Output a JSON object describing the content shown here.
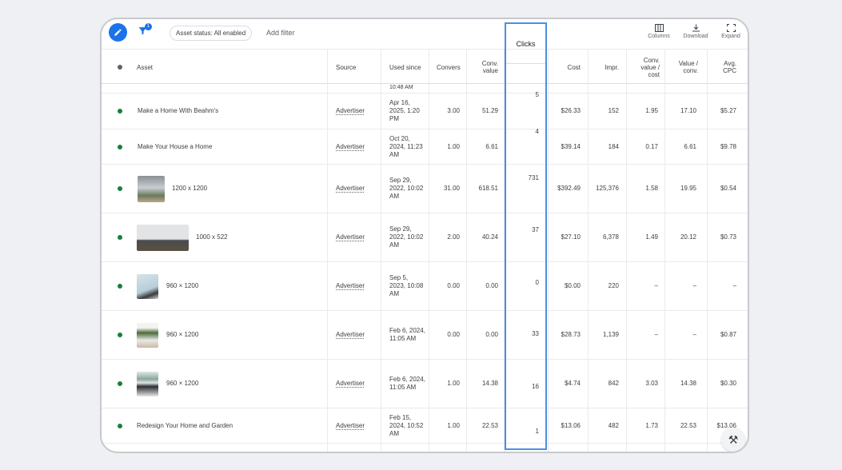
{
  "toolbar": {
    "filter_count": "1",
    "chip_label": "Asset status: All enabled",
    "add_filter": "Add filter",
    "columns_label": "Columns",
    "download_label": "Download",
    "expand_label": "Expand"
  },
  "headers": {
    "asset": "Asset",
    "source": "Source",
    "used_since": "Used since",
    "conversions": "Convers",
    "conv_value": "Conv. value",
    "clicks": "Clicks",
    "cost": "Cost",
    "impr": "Impr.",
    "conv_value_cost": "Conv. value / cost",
    "value_conv": "Value / conv.",
    "avg_cpc": "Avg. CPC"
  },
  "partial_top": "10:48 AM",
  "rows": [
    {
      "asset": "Make a Home With Beahm's",
      "source": "Advertiser",
      "used_since": "Apr 16, 2025, 1:20 PM",
      "conversions": "3.00",
      "conv_value": "51.29",
      "clicks": "5",
      "cost": "$26.33",
      "impr": "152",
      "conv_value_cost": "1.95",
      "value_conv": "17.10",
      "avg_cpc": "$5.27"
    },
    {
      "asset": "Make Your House a Home",
      "source": "Advertiser",
      "used_since": "Oct 20, 2024, 11:23 AM",
      "conversions": "1.00",
      "conv_value": "6.61",
      "clicks": "4",
      "cost": "$39.14",
      "impr": "184",
      "conv_value_cost": "0.17",
      "value_conv": "6.61",
      "avg_cpc": "$9.78"
    },
    {
      "asset": "1200 x 1200",
      "source": "Advertiser",
      "used_since": "Sep 29, 2022, 10:02 AM",
      "conversions": "31.00",
      "conv_value": "618.51",
      "clicks": "731",
      "cost": "$392.49",
      "impr": "125,376",
      "conv_value_cost": "1.58",
      "value_conv": "19.95",
      "avg_cpc": "$0.54"
    },
    {
      "asset": "1000 x 522",
      "source": "Advertiser",
      "used_since": "Sep 29, 2022, 10:02 AM",
      "conversions": "2.00",
      "conv_value": "40.24",
      "clicks": "37",
      "cost": "$27.10",
      "impr": "6,378",
      "conv_value_cost": "1.49",
      "value_conv": "20.12",
      "avg_cpc": "$0.73"
    },
    {
      "asset": "960 × 1200",
      "source": "Advertiser",
      "used_since": "Sep 5, 2023, 10:08 AM",
      "conversions": "0.00",
      "conv_value": "0.00",
      "clicks": "0",
      "cost": "$0.00",
      "impr": "220",
      "conv_value_cost": "–",
      "value_conv": "–",
      "avg_cpc": "–"
    },
    {
      "asset": "960 × 1200",
      "source": "Advertiser",
      "used_since": "Feb 6, 2024, 11:05 AM",
      "conversions": "0.00",
      "conv_value": "0.00",
      "clicks": "33",
      "cost": "$28.73",
      "impr": "1,139",
      "conv_value_cost": "–",
      "value_conv": "–",
      "avg_cpc": "$0.87"
    },
    {
      "asset": "960 × 1200",
      "source": "Advertiser",
      "used_since": "Feb 6, 2024, 11:05 AM",
      "conversions": "1.00",
      "conv_value": "14.38",
      "clicks": "16",
      "cost": "$4.74",
      "impr": "842",
      "conv_value_cost": "3.03",
      "value_conv": "14.38",
      "avg_cpc": "$0.30"
    },
    {
      "asset": "Redesign Your Home and Garden",
      "source": "Advertiser",
      "used_since": "Feb 15, 2024, 10:52 AM",
      "conversions": "1.00",
      "conv_value": "22.53",
      "clicks": "1",
      "cost": "$13.06",
      "impr": "482",
      "conv_value_cost": "1.73",
      "value_conv": "22.53",
      "avg_cpc": "$13.06"
    }
  ],
  "colors": {
    "accent": "#1a73e8",
    "status": "#188038",
    "highlight": "#4a90e2"
  }
}
